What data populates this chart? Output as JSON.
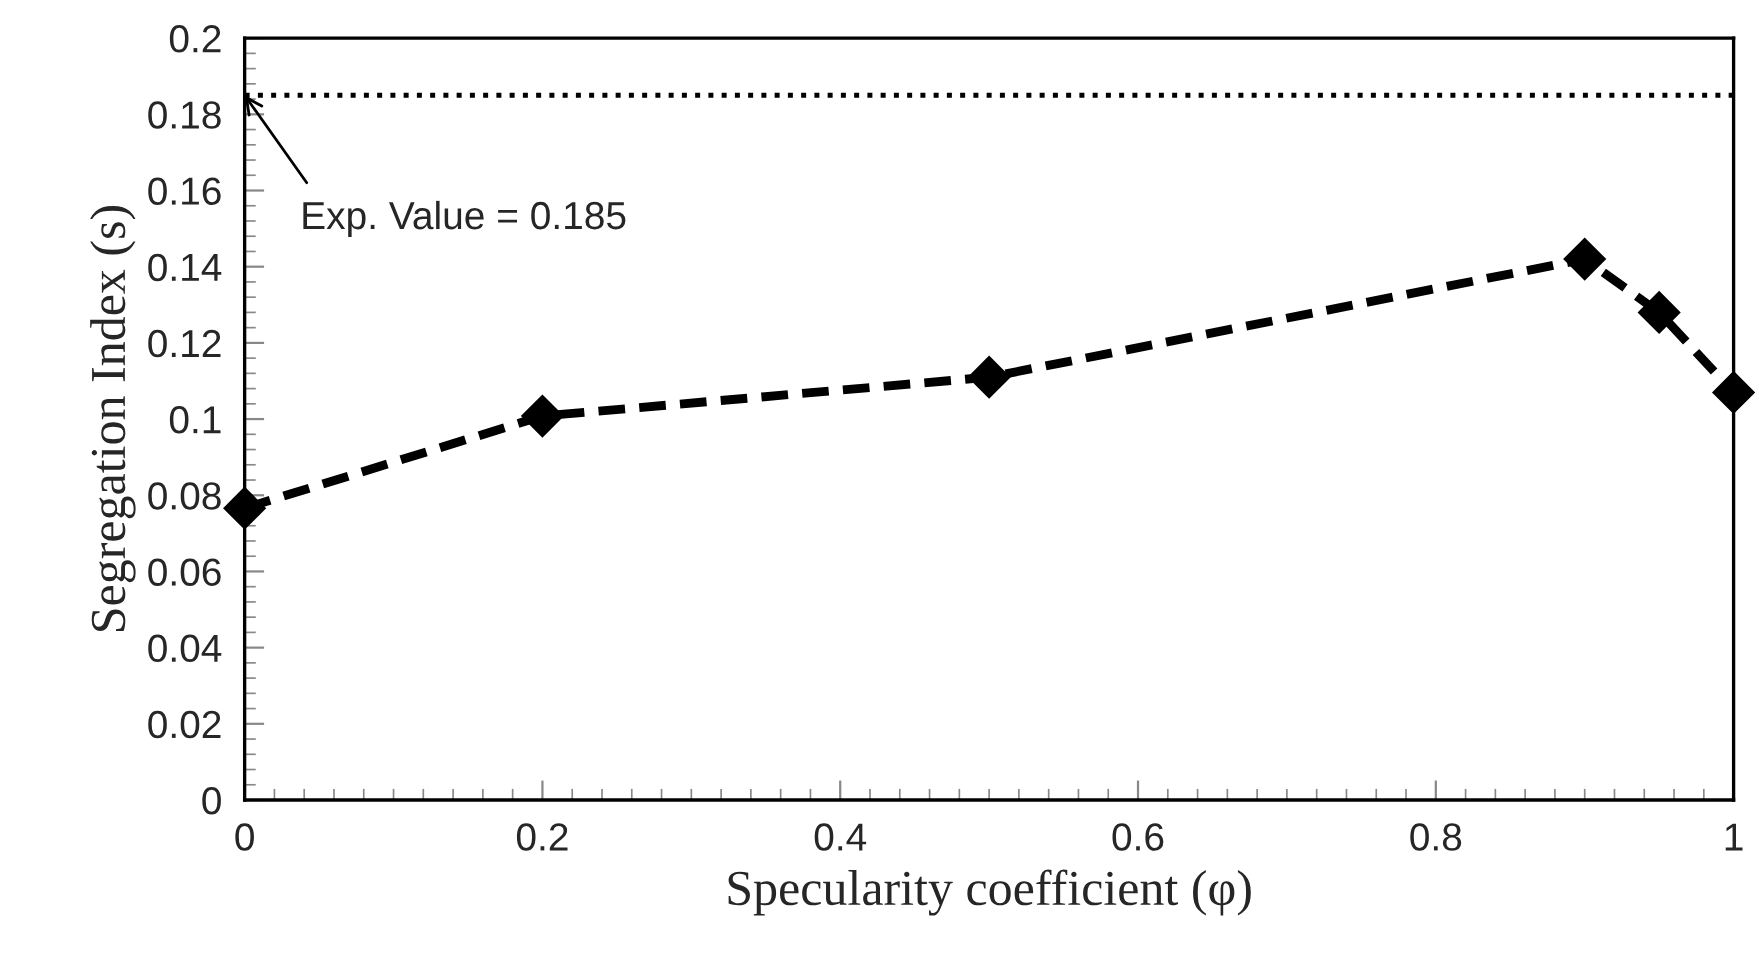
{
  "chart_data": {
    "type": "line",
    "xlabel": "Specularity coefficient (φ)",
    "ylabel": "Segregation Index (s)",
    "x": [
      0,
      0.2,
      0.5,
      0.9,
      0.95,
      1.0
    ],
    "series": [
      {
        "color": "#000000",
        "values": [
          0.0766,
          0.1008,
          0.111,
          0.142,
          0.128,
          0.107
        ],
        "marker": "diamond",
        "line_style": "dashed"
      }
    ],
    "xlim": [
      0,
      1
    ],
    "xticks": [
      0,
      0.2,
      0.4,
      0.6,
      0.8,
      1
    ],
    "ylim": [
      0,
      0.2
    ],
    "yticks": [
      0,
      0.02,
      0.04,
      0.06,
      0.08,
      0.1,
      0.12,
      0.14,
      0.16,
      0.18,
      0.2
    ],
    "ref_lines": [
      {
        "axis": "y",
        "value": 0.185,
        "color": "#000000",
        "line_style": "dotted"
      }
    ],
    "annotations": [
      {
        "text": "Exp. Value = 0.185",
        "x": 0,
        "y": 0.185
      }
    ],
    "grid": false,
    "legend": false
  }
}
